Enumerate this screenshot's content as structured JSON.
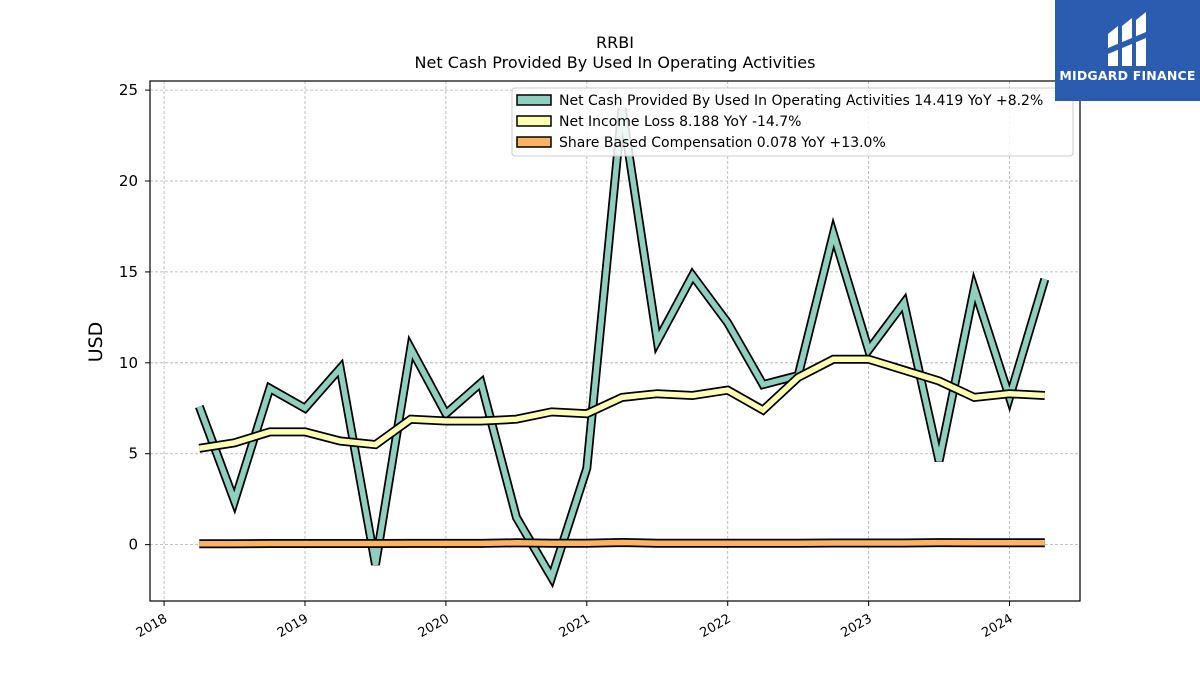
{
  "chart_data": {
    "type": "line",
    "title": "RRBI",
    "subtitle": "Net Cash Provided By Used In Operating Activities",
    "xlabel": "",
    "ylabel": "USD",
    "xlim": [
      2017.9,
      2024.5
    ],
    "ylim": [
      -3.1,
      25.5
    ],
    "yticks": [
      0,
      5,
      10,
      15,
      20,
      25
    ],
    "xticks": [
      2018,
      2019,
      2020,
      2021,
      2022,
      2023,
      2024
    ],
    "xtick_labels": [
      "2018",
      "2019",
      "2020",
      "2021",
      "2022",
      "2023",
      "2024"
    ],
    "grid": true,
    "legend_position": "top-right",
    "x": [
      2018.25,
      2018.5,
      2018.75,
      2019.0,
      2019.25,
      2019.5,
      2019.75,
      2020.0,
      2020.25,
      2020.5,
      2020.75,
      2021.0,
      2021.25,
      2021.5,
      2021.75,
      2022.0,
      2022.25,
      2022.5,
      2022.75,
      2023.0,
      2023.25,
      2023.5,
      2023.75,
      2024.0,
      2024.25
    ],
    "series": [
      {
        "name": "Net Cash Provided By Used In Operating Activities",
        "legend_label": "Net Cash Provided By Used In Operating Activities  14.419 YoY +8.2%",
        "color": "#8ecfc0",
        "values": [
          7.6,
          2.4,
          8.6,
          7.5,
          9.7,
          -1.1,
          10.8,
          7.2,
          8.9,
          1.5,
          -1.8,
          4.2,
          24.0,
          11.2,
          14.8,
          12.2,
          8.8,
          9.3,
          17.1,
          10.7,
          13.3,
          4.6,
          14.1,
          8.1,
          14.6
        ]
      },
      {
        "name": "Net Income Loss",
        "legend_label": "Net Income Loss  8.188 YoY -14.7%",
        "color": "#ffffb3",
        "values": [
          5.3,
          5.6,
          6.2,
          6.2,
          5.7,
          5.5,
          6.9,
          6.8,
          6.8,
          6.9,
          7.3,
          7.2,
          8.1,
          8.3,
          8.2,
          8.5,
          7.4,
          9.2,
          10.2,
          10.2,
          9.6,
          9.0,
          8.1,
          8.3,
          8.2
        ]
      },
      {
        "name": "Share Based Compensation",
        "legend_label": "Share Based Compensation  0.078 YoY +13.0%",
        "color": "#fdb462",
        "values": [
          0.05,
          0.05,
          0.06,
          0.06,
          0.06,
          0.06,
          0.07,
          0.07,
          0.07,
          0.1,
          0.08,
          0.08,
          0.12,
          0.08,
          0.08,
          0.08,
          0.08,
          0.08,
          0.09,
          0.09,
          0.09,
          0.11,
          0.1,
          0.1,
          0.1
        ]
      }
    ]
  },
  "logo": {
    "text": "MIDGARD FINANCE",
    "background": "#2a5db0"
  }
}
